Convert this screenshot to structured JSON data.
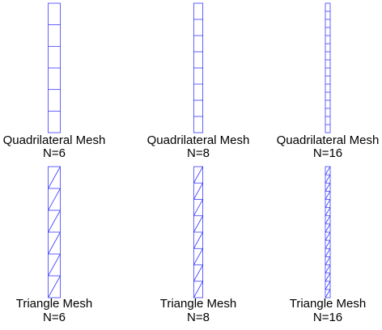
{
  "panels": [
    {
      "title": "Quadrilateral Mesh",
      "label": "N=6"
    },
    {
      "title": "Quadrilateral Mesh",
      "label": "N=8"
    },
    {
      "title": "Quadrilateral Mesh",
      "label": "N=16"
    },
    {
      "title": "Triangle Mesh",
      "label": "N=6"
    },
    {
      "title": "Triangle Mesh",
      "label": "N=8"
    },
    {
      "title": "Triangle Mesh",
      "label": "N=16"
    }
  ]
}
